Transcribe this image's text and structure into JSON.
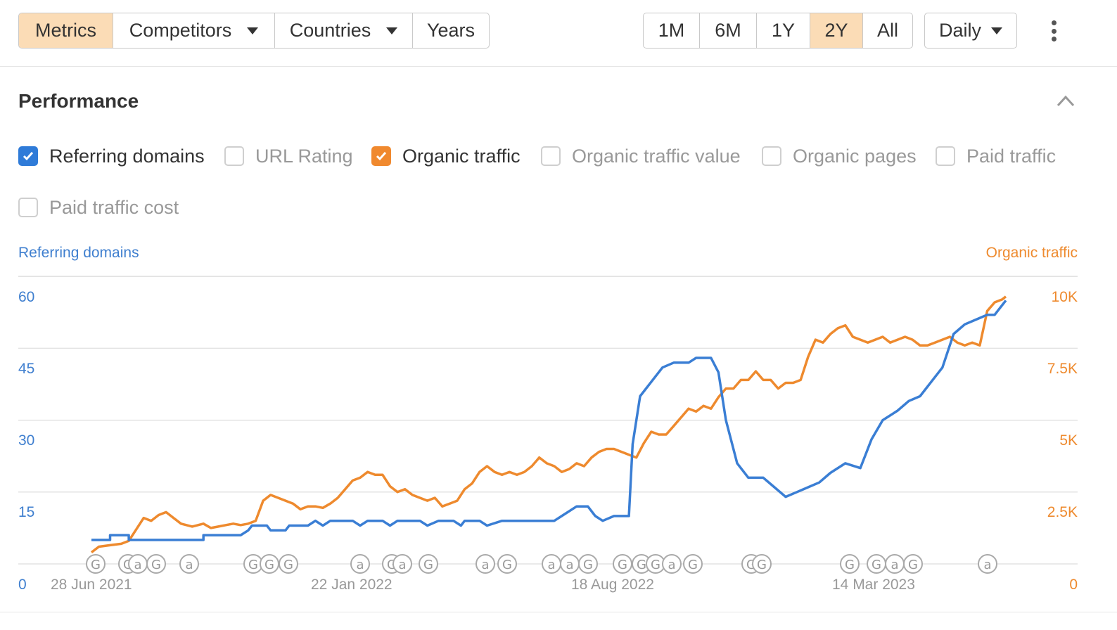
{
  "toolbar": {
    "view_tabs": [
      {
        "label": "Metrics",
        "active": true
      },
      {
        "label": "Competitors",
        "dropdown": true
      },
      {
        "label": "Countries",
        "dropdown": true
      },
      {
        "label": "Years"
      }
    ],
    "range_tabs": [
      {
        "label": "1M"
      },
      {
        "label": "6M"
      },
      {
        "label": "1Y"
      },
      {
        "label": "2Y",
        "active": true
      },
      {
        "label": "All"
      }
    ],
    "interval": {
      "label": "Daily"
    },
    "more_icon": "more-vertical-icon"
  },
  "panel": {
    "title": "Performance",
    "collapse_icon": "chevron-up-icon",
    "metrics": [
      {
        "label": "Referring domains",
        "checked": true,
        "color": "#2f7bd8"
      },
      {
        "label": "URL Rating",
        "checked": false
      },
      {
        "label": "Organic traffic",
        "checked": true,
        "color": "#f0892e"
      },
      {
        "label": "Organic traffic value",
        "checked": false
      },
      {
        "label": "Organic pages",
        "checked": false
      },
      {
        "label": "Paid traffic",
        "checked": false
      },
      {
        "label": "Paid traffic cost",
        "checked": false
      }
    ]
  },
  "chart_data": {
    "type": "line",
    "x_labels": [
      "28 Jun 2021",
      "22 Jan 2022",
      "18 Aug 2022",
      "14 Mar 2023"
    ],
    "left_axis": {
      "title": "Referring domains",
      "ticks": [
        "60",
        "45",
        "30",
        "15",
        "0"
      ],
      "ylim": [
        0,
        60
      ],
      "color": "#3f7fcf"
    },
    "right_axis": {
      "title": "Organic traffic",
      "ticks": [
        "10K",
        "7.5K",
        "5K",
        "2.5K",
        "0"
      ],
      "ylim": [
        0,
        10000
      ],
      "color": "#ee8a2e"
    },
    "grid": true,
    "series": [
      {
        "name": "Referring domains",
        "color": "#3a7ed4",
        "axis": "left",
        "points": [
          [
            0,
            5
          ],
          [
            0.05,
            5
          ],
          [
            0.05,
            6
          ],
          [
            0.1,
            6
          ],
          [
            0.1,
            5
          ],
          [
            0.3,
            5
          ],
          [
            0.3,
            6
          ],
          [
            0.4,
            6
          ],
          [
            0.42,
            7
          ],
          [
            0.43,
            8
          ],
          [
            0.47,
            8
          ],
          [
            0.48,
            7
          ],
          [
            0.52,
            7
          ],
          [
            0.53,
            8
          ],
          [
            0.58,
            8
          ],
          [
            0.6,
            9
          ],
          [
            0.62,
            8
          ],
          [
            0.64,
            9
          ],
          [
            0.7,
            9
          ],
          [
            0.72,
            8
          ],
          [
            0.74,
            9
          ],
          [
            0.78,
            9
          ],
          [
            0.8,
            8
          ],
          [
            0.82,
            9
          ],
          [
            0.88,
            9
          ],
          [
            0.9,
            8
          ],
          [
            0.93,
            9
          ],
          [
            0.97,
            9
          ],
          [
            0.99,
            8
          ],
          [
            1.0,
            9
          ],
          [
            1.04,
            9
          ],
          [
            1.06,
            8
          ],
          [
            1.1,
            9
          ],
          [
            1.24,
            9
          ],
          [
            1.26,
            10
          ],
          [
            1.3,
            12
          ],
          [
            1.33,
            12
          ],
          [
            1.35,
            10
          ],
          [
            1.37,
            9
          ],
          [
            1.4,
            10
          ],
          [
            1.44,
            10
          ],
          [
            1.45,
            25
          ],
          [
            1.47,
            35
          ],
          [
            1.5,
            38
          ],
          [
            1.53,
            41
          ],
          [
            1.56,
            42
          ],
          [
            1.6,
            42
          ],
          [
            1.62,
            43
          ],
          [
            1.66,
            43
          ],
          [
            1.68,
            40
          ],
          [
            1.7,
            30
          ],
          [
            1.73,
            21
          ],
          [
            1.76,
            18
          ],
          [
            1.8,
            18
          ],
          [
            1.83,
            16
          ],
          [
            1.86,
            14
          ],
          [
            1.89,
            15
          ],
          [
            1.92,
            16
          ],
          [
            1.95,
            17
          ],
          [
            1.98,
            19
          ],
          [
            2.02,
            21
          ],
          [
            2.06,
            20
          ],
          [
            2.09,
            26
          ],
          [
            2.12,
            30
          ],
          [
            2.16,
            32
          ],
          [
            2.19,
            34
          ],
          [
            2.22,
            35
          ],
          [
            2.25,
            38
          ],
          [
            2.28,
            41
          ],
          [
            2.31,
            48
          ],
          [
            2.34,
            50
          ],
          [
            2.37,
            51
          ],
          [
            2.4,
            52
          ],
          [
            2.42,
            52
          ],
          [
            2.44,
            54
          ],
          [
            2.45,
            55
          ]
        ]
      },
      {
        "name": "Organic traffic",
        "color": "#ee8a2e",
        "axis": "right",
        "points": [
          [
            0,
            400
          ],
          [
            0.02,
            600
          ],
          [
            0.05,
            650
          ],
          [
            0.08,
            700
          ],
          [
            0.1,
            800
          ],
          [
            0.12,
            1200
          ],
          [
            0.14,
            1600
          ],
          [
            0.16,
            1500
          ],
          [
            0.18,
            1700
          ],
          [
            0.2,
            1800
          ],
          [
            0.22,
            1600
          ],
          [
            0.24,
            1400
          ],
          [
            0.27,
            1300
          ],
          [
            0.3,
            1400
          ],
          [
            0.32,
            1250
          ],
          [
            0.34,
            1300
          ],
          [
            0.36,
            1350
          ],
          [
            0.38,
            1400
          ],
          [
            0.4,
            1350
          ],
          [
            0.42,
            1400
          ],
          [
            0.44,
            1500
          ],
          [
            0.46,
            2200
          ],
          [
            0.48,
            2400
          ],
          [
            0.5,
            2300
          ],
          [
            0.52,
            2200
          ],
          [
            0.54,
            2100
          ],
          [
            0.56,
            1900
          ],
          [
            0.58,
            2000
          ],
          [
            0.6,
            2000
          ],
          [
            0.62,
            1950
          ],
          [
            0.64,
            2100
          ],
          [
            0.66,
            2300
          ],
          [
            0.68,
            2600
          ],
          [
            0.7,
            2900
          ],
          [
            0.72,
            3000
          ],
          [
            0.74,
            3200
          ],
          [
            0.76,
            3100
          ],
          [
            0.78,
            3100
          ],
          [
            0.8,
            2700
          ],
          [
            0.82,
            2500
          ],
          [
            0.84,
            2600
          ],
          [
            0.86,
            2400
          ],
          [
            0.88,
            2300
          ],
          [
            0.9,
            2200
          ],
          [
            0.92,
            2300
          ],
          [
            0.94,
            2000
          ],
          [
            0.96,
            2100
          ],
          [
            0.98,
            2200
          ],
          [
            1.0,
            2600
          ],
          [
            1.02,
            2800
          ],
          [
            1.04,
            3200
          ],
          [
            1.06,
            3400
          ],
          [
            1.08,
            3200
          ],
          [
            1.1,
            3100
          ],
          [
            1.12,
            3200
          ],
          [
            1.14,
            3100
          ],
          [
            1.16,
            3200
          ],
          [
            1.18,
            3400
          ],
          [
            1.2,
            3700
          ],
          [
            1.22,
            3500
          ],
          [
            1.24,
            3400
          ],
          [
            1.26,
            3200
          ],
          [
            1.28,
            3300
          ],
          [
            1.3,
            3500
          ],
          [
            1.32,
            3400
          ],
          [
            1.34,
            3700
          ],
          [
            1.36,
            3900
          ],
          [
            1.38,
            4000
          ],
          [
            1.4,
            4000
          ],
          [
            1.42,
            3900
          ],
          [
            1.44,
            3800
          ],
          [
            1.46,
            3700
          ],
          [
            1.48,
            4200
          ],
          [
            1.5,
            4600
          ],
          [
            1.52,
            4500
          ],
          [
            1.54,
            4500
          ],
          [
            1.56,
            4800
          ],
          [
            1.58,
            5100
          ],
          [
            1.6,
            5400
          ],
          [
            1.62,
            5300
          ],
          [
            1.64,
            5500
          ],
          [
            1.66,
            5400
          ],
          [
            1.68,
            5800
          ],
          [
            1.7,
            6100
          ],
          [
            1.72,
            6100
          ],
          [
            1.74,
            6400
          ],
          [
            1.76,
            6400
          ],
          [
            1.78,
            6700
          ],
          [
            1.8,
            6400
          ],
          [
            1.82,
            6400
          ],
          [
            1.84,
            6100
          ],
          [
            1.86,
            6300
          ],
          [
            1.88,
            6300
          ],
          [
            1.9,
            6400
          ],
          [
            1.92,
            7200
          ],
          [
            1.94,
            7800
          ],
          [
            1.96,
            7700
          ],
          [
            1.98,
            8000
          ],
          [
            2.0,
            8200
          ],
          [
            2.02,
            8300
          ],
          [
            2.04,
            7900
          ],
          [
            2.06,
            7800
          ],
          [
            2.08,
            7700
          ],
          [
            2.1,
            7800
          ],
          [
            2.12,
            7900
          ],
          [
            2.14,
            7700
          ],
          [
            2.16,
            7800
          ],
          [
            2.18,
            7900
          ],
          [
            2.2,
            7800
          ],
          [
            2.22,
            7600
          ],
          [
            2.24,
            7600
          ],
          [
            2.26,
            7700
          ],
          [
            2.28,
            7800
          ],
          [
            2.3,
            7900
          ],
          [
            2.32,
            7700
          ],
          [
            2.34,
            7600
          ],
          [
            2.36,
            7700
          ],
          [
            2.38,
            7600
          ],
          [
            2.4,
            8800
          ],
          [
            2.42,
            9100
          ],
          [
            2.44,
            9200
          ],
          [
            2.45,
            9300
          ]
        ]
      }
    ],
    "markers": [
      "G",
      "G",
      "a",
      "G",
      "a",
      "G",
      "G",
      "G",
      "a",
      "G",
      "a",
      "G",
      "a",
      "G",
      "a",
      "a",
      "G",
      "G",
      "G",
      "G",
      "a",
      "G",
      "G",
      "G",
      "G",
      "G",
      "a",
      "G",
      "a"
    ]
  }
}
